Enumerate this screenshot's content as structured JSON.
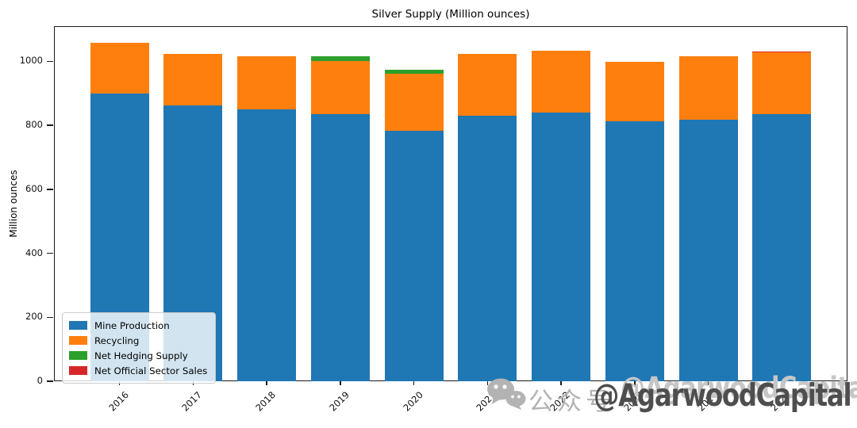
{
  "title": "Silver Supply (Million ounces)",
  "ylabel": "Million ounces",
  "chart_data": {
    "type": "bar",
    "stacked": true,
    "title": "Silver Supply (Million ounces)",
    "xlabel": "",
    "ylabel": "Million ounces",
    "categories": [
      "2016",
      "2017",
      "2018",
      "2019",
      "2020",
      "2021",
      "2022",
      "2023",
      "2024",
      "2025"
    ],
    "series": [
      {
        "name": "Mine Production",
        "color": "#1f77b4",
        "values": [
          900,
          862,
          851,
          836,
          784,
          831,
          839,
          813,
          818,
          835
        ]
      },
      {
        "name": "Recycling",
        "color": "#ff7f0e",
        "values": [
          157,
          161,
          164,
          164,
          178,
          192,
          194,
          186,
          197,
          193
        ]
      },
      {
        "name": "Net Hedging Supply",
        "color": "#2ca02c",
        "values": [
          0,
          0,
          0,
          16,
          12,
          0,
          0,
          0,
          0,
          0
        ]
      },
      {
        "name": "Net Official Sector Sales",
        "color": "#d62728",
        "values": [
          0,
          0,
          0,
          0,
          0,
          0,
          0,
          0,
          0,
          4
        ]
      }
    ],
    "ylim": [
      0,
      1110
    ],
    "yticks": [
      0,
      200,
      400,
      600,
      800,
      1000
    ],
    "grid": false,
    "legend_position": "lower left"
  },
  "watermark": {
    "platform_label": "公众号",
    "handle": "@AgarwoodCapital",
    "icon": "wechat-icon",
    "platform_color": "#b3b3b3",
    "handle_color": "#4e4e4e"
  }
}
